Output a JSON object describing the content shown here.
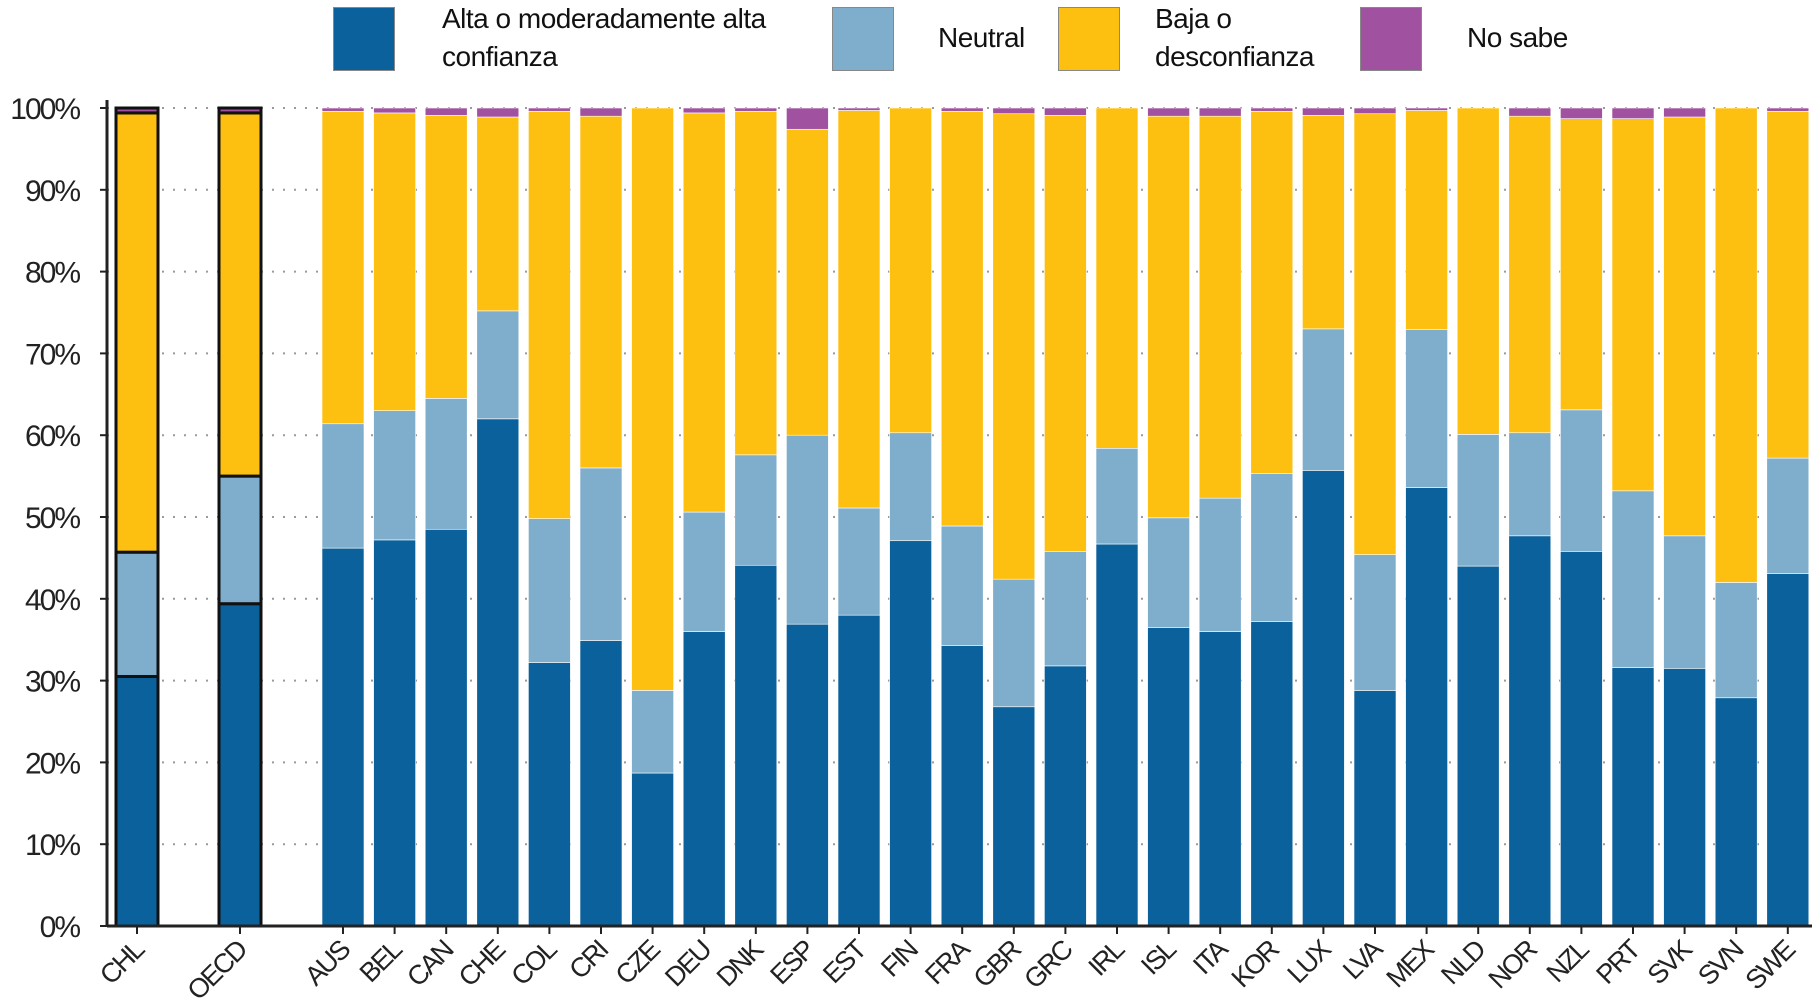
{
  "chart_data": {
    "type": "bar",
    "stacked": true,
    "categories": [
      "CHL",
      "OECD",
      "AUS",
      "BEL",
      "CAN",
      "CHE",
      "COL",
      "CRI",
      "CZE",
      "DEU",
      "DNK",
      "ESP",
      "EST",
      "FIN",
      "FRA",
      "GBR",
      "GRC",
      "IRL",
      "ISL",
      "ITA",
      "KOR",
      "LUX",
      "LVA",
      "MEX",
      "NLD",
      "NOR",
      "NZL",
      "PRT",
      "SVK",
      "SVN",
      "SWE"
    ],
    "highlighted": [
      "CHL",
      "OECD"
    ],
    "series": [
      {
        "name": "Alta o moderadamente alta confianza",
        "color": "#0a619c",
        "values": [
          30.5,
          39.4,
          46.2,
          47.2,
          48.5,
          62.0,
          32.2,
          34.9,
          18.7,
          36.0,
          44.1,
          36.9,
          38.0,
          47.1,
          34.3,
          26.8,
          31.8,
          46.7,
          36.5,
          36.0,
          37.2,
          55.7,
          28.8,
          53.6,
          44.0,
          47.7,
          45.8,
          31.6,
          31.5,
          27.9,
          43.1
        ]
      },
      {
        "name": "Neutral",
        "color": "#7fadcc",
        "values": [
          15.2,
          15.6,
          15.2,
          15.8,
          16.0,
          13.2,
          17.6,
          21.1,
          10.1,
          14.6,
          13.5,
          23.1,
          13.1,
          13.2,
          14.6,
          15.6,
          14.0,
          11.7,
          13.4,
          16.3,
          18.1,
          17.3,
          16.6,
          19.3,
          16.1,
          12.6,
          17.3,
          21.6,
          16.2,
          14.1,
          14.1
        ]
      },
      {
        "name": "Baja o desconfianza",
        "color": "#fdc010",
        "values": [
          53.7,
          44.4,
          38.2,
          36.4,
          34.6,
          23.7,
          49.8,
          43.0,
          71.2,
          48.8,
          42.0,
          37.4,
          48.6,
          39.7,
          50.7,
          56.9,
          53.3,
          41.6,
          49.1,
          46.7,
          44.3,
          26.1,
          53.9,
          26.8,
          39.9,
          38.7,
          35.6,
          45.5,
          51.2,
          58.0,
          42.4
        ]
      },
      {
        "name": "No sabe",
        "color": "#a052a0",
        "values": [
          0.6,
          0.6,
          0.4,
          0.6,
          0.9,
          1.1,
          0.4,
          1.0,
          0.0,
          0.6,
          0.4,
          2.6,
          0.3,
          0.0,
          0.4,
          0.7,
          0.9,
          0.0,
          1.0,
          1.0,
          0.4,
          0.9,
          0.7,
          0.3,
          0.0,
          1.0,
          1.3,
          1.3,
          1.1,
          0.0,
          0.4
        ]
      }
    ],
    "ylim": [
      0,
      100
    ],
    "yticks": [
      "0%",
      "10%",
      "20%",
      "30%",
      "40%",
      "50%",
      "60%",
      "70%",
      "80%",
      "90%",
      "100%"
    ],
    "grid": "horizontal dotted",
    "legend_position": "top",
    "legend": [
      "Alta o moderadamente alta",
      "confianza",
      "Neutral",
      "Baja o",
      "desconfianza",
      "No sabe"
    ]
  }
}
